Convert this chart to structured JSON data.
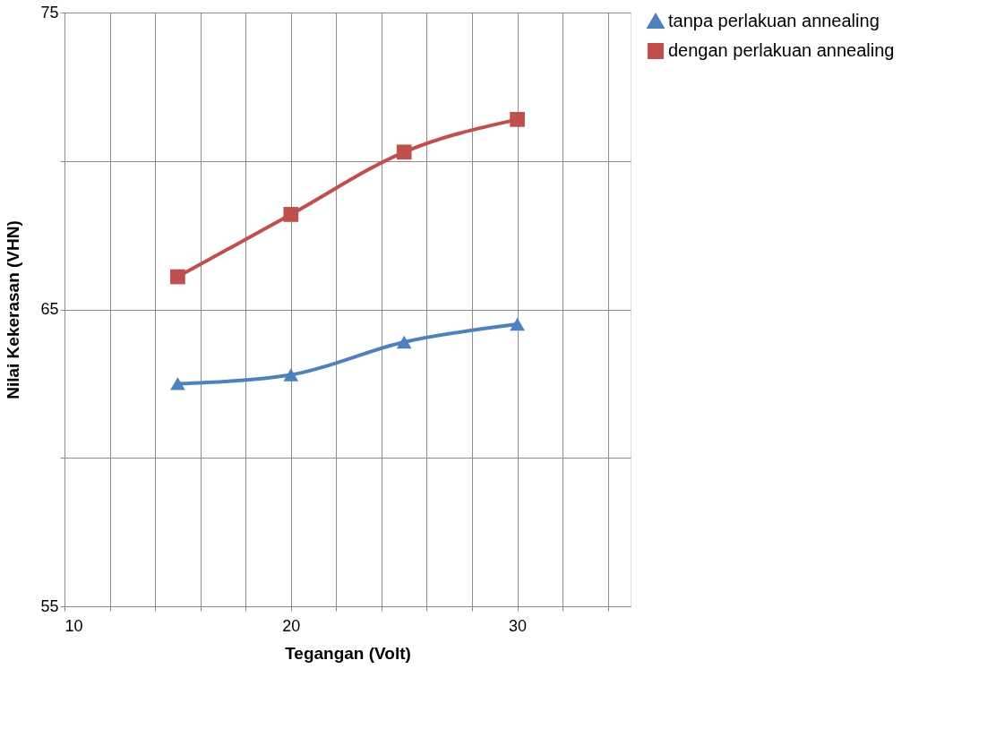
{
  "chart_data": {
    "type": "line",
    "xlabel": "Tegangan (Volt)",
    "ylabel": "Nilai Kekerasan (VHN)",
    "x": [
      15,
      20,
      25,
      30
    ],
    "series": [
      {
        "name": "tanpa perlakuan annealing",
        "color": "#4f81bd",
        "marker": "triangle",
        "values": [
          62.5,
          62.8,
          63.9,
          64.5
        ]
      },
      {
        "name": "dengan perlakuan annealing",
        "color": "#c0504d",
        "marker": "square",
        "values": [
          66.1,
          68.2,
          70.3,
          71.4
        ]
      }
    ],
    "xlim": [
      10,
      35
    ],
    "xticks": [
      10,
      {
        "value": 12,
        "label": null
      },
      {
        "value": 14,
        "label": null
      },
      {
        "value": 16,
        "label": null
      },
      {
        "value": 18,
        "label": null
      },
      20,
      {
        "value": 22,
        "label": null
      },
      {
        "value": 24,
        "label": null
      },
      {
        "value": 26,
        "label": null
      },
      {
        "value": 28,
        "label": null
      },
      30,
      {
        "value": 32,
        "label": null
      },
      {
        "value": 34,
        "label": null
      }
    ],
    "ylim": [
      55,
      75
    ],
    "yticks": [
      55,
      {
        "value": 60,
        "label": null
      },
      65,
      {
        "value": 70,
        "label": null
      },
      75
    ],
    "grid": true,
    "legend": "right"
  }
}
